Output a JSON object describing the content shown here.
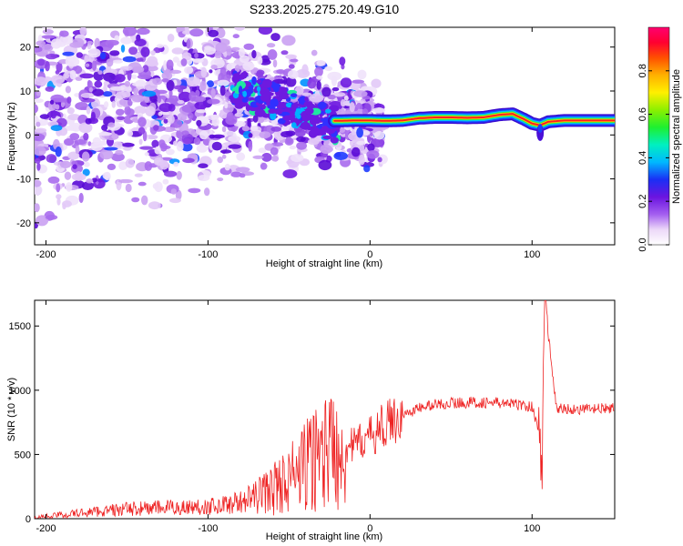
{
  "title": "S233.2025.275.20.49.G10",
  "chart_data": [
    {
      "type": "heatmap",
      "xlabel": "Height of straight line (km)",
      "ylabel": "Frequency (Hz)",
      "xlim": [
        -207,
        151
      ],
      "ylim": [
        -25,
        24.5
      ],
      "xticks": [
        -200,
        -100,
        0,
        100
      ],
      "yticks": [
        -20,
        -10,
        0,
        10,
        20
      ],
      "colorbar": {
        "label": "Normalized spectral amplitude",
        "range": [
          0,
          1
        ],
        "ticks": [
          "0.0",
          "0.2",
          "0.4",
          "0.6",
          "0.8"
        ],
        "tick_values": [
          0,
          0.2,
          0.4,
          0.6,
          0.8
        ]
      },
      "ridge": [
        {
          "x": -20,
          "y": 3.2
        },
        {
          "x": -10,
          "y": 3.3
        },
        {
          "x": 0,
          "y": 3.3
        },
        {
          "x": 10,
          "y": 3.2
        },
        {
          "x": 20,
          "y": 3.3
        },
        {
          "x": 30,
          "y": 3.8
        },
        {
          "x": 40,
          "y": 4.0
        },
        {
          "x": 50,
          "y": 4.0
        },
        {
          "x": 60,
          "y": 3.9
        },
        {
          "x": 70,
          "y": 4.0
        },
        {
          "x": 80,
          "y": 4.6
        },
        {
          "x": 88,
          "y": 4.8
        },
        {
          "x": 95,
          "y": 3.6
        },
        {
          "x": 100,
          "y": 2.6
        },
        {
          "x": 105,
          "y": 2.2
        },
        {
          "x": 110,
          "y": 3.0
        },
        {
          "x": 120,
          "y": 3.3
        },
        {
          "x": 130,
          "y": 3.3
        },
        {
          "x": 140,
          "y": 3.3
        },
        {
          "x": 151,
          "y": 3.3
        }
      ]
    },
    {
      "type": "line",
      "xlabel": "Height of straight line (km)",
      "ylabel": "SNR (10 * v/v)",
      "xlim": [
        -207,
        151
      ],
      "ylim": [
        0,
        1700
      ],
      "xticks": [
        -200,
        -100,
        0,
        100
      ],
      "yticks": [
        0,
        500,
        1000,
        1500
      ],
      "series": [
        {
          "color": "#ee2222",
          "x": [
            -207,
            -190,
            -170,
            -150,
            -130,
            -110,
            -95,
            -80,
            -70,
            -60,
            -50,
            -40,
            -30,
            -20,
            -10,
            0,
            10,
            20,
            30,
            40,
            50,
            60,
            70,
            80,
            90,
            100,
            104,
            106,
            108,
            115,
            130,
            151
          ],
          "y": [
            10,
            30,
            55,
            75,
            85,
            90,
            100,
            130,
            180,
            230,
            310,
            400,
            530,
            550,
            570,
            640,
            740,
            800,
            860,
            890,
            900,
            905,
            905,
            900,
            890,
            870,
            700,
            300,
            1680,
            860,
            850,
            860
          ]
        }
      ]
    }
  ]
}
